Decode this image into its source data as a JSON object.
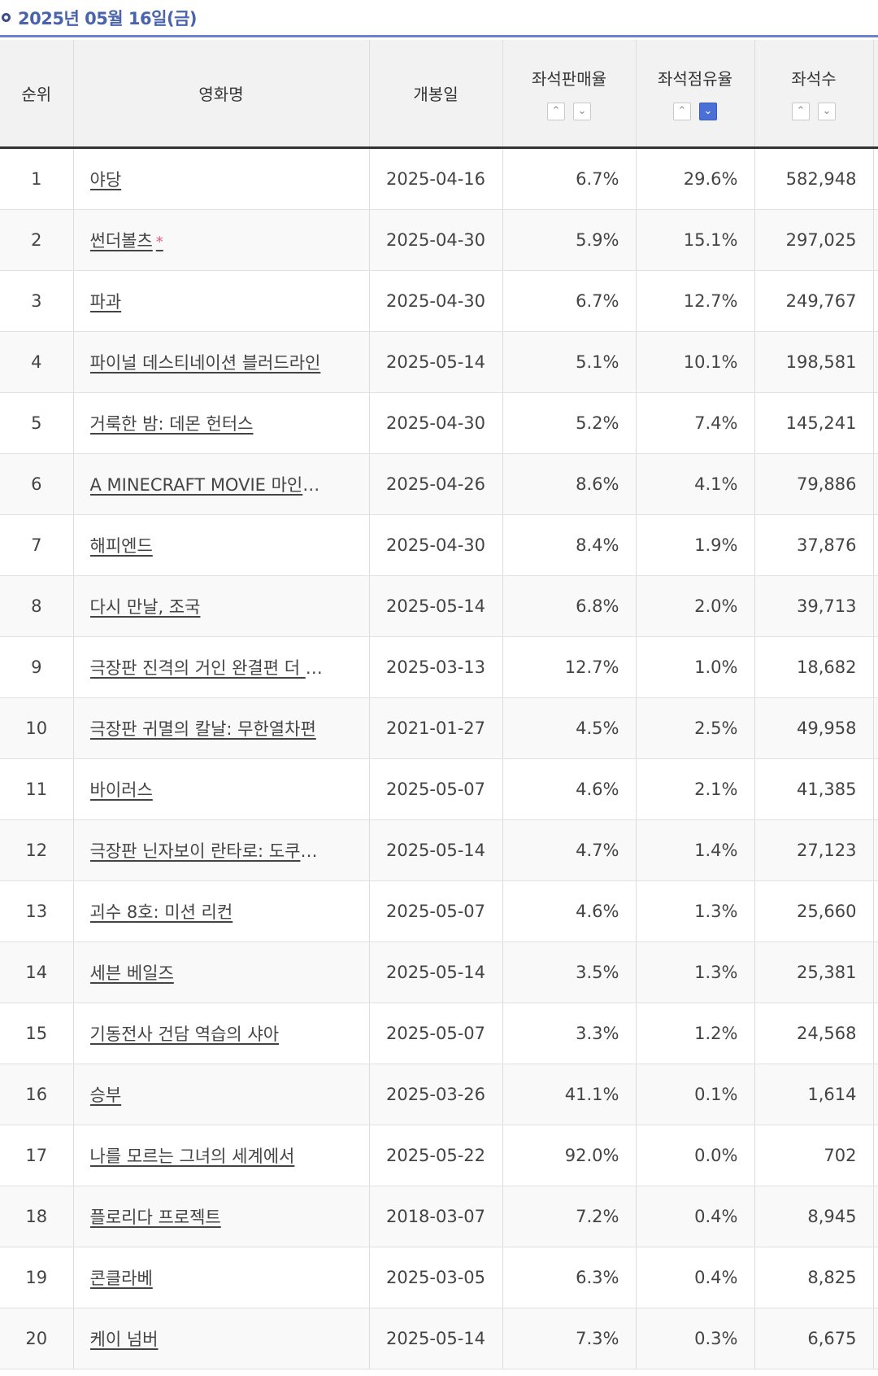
{
  "date_header": "2025년 05월 16일(금)",
  "columns": {
    "rank": "순위",
    "title": "영화명",
    "open_date": "개봉일",
    "seat_sales": "좌석판매율",
    "seat_share": "좌석점유율",
    "seats": "좌석수"
  },
  "sort_icons": {
    "up": "chevron-up-icon",
    "down": "chevron-down-icon"
  },
  "active_sort": "seat_share-desc",
  "colors": {
    "accent": "#4a6fd6",
    "header_text": "#4a63ad",
    "star": "#e25a8c"
  },
  "rows": [
    {
      "rank": "1",
      "title": "야당",
      "open_date": "2025-04-16",
      "seat_sales": "6.7%",
      "seat_share": "29.6%",
      "seats": "582,948",
      "star": ""
    },
    {
      "rank": "2",
      "title": "썬더볼츠",
      "open_date": "2025-04-30",
      "seat_sales": "5.9%",
      "seat_share": "15.1%",
      "seats": "297,025",
      "star": "*"
    },
    {
      "rank": "3",
      "title": "파과",
      "open_date": "2025-04-30",
      "seat_sales": "6.7%",
      "seat_share": "12.7%",
      "seats": "249,767",
      "star": ""
    },
    {
      "rank": "4",
      "title": "파이널 데스티네이션 블러드라인",
      "open_date": "2025-05-14",
      "seat_sales": "5.1%",
      "seat_share": "10.1%",
      "seats": "198,581",
      "star": ""
    },
    {
      "rank": "5",
      "title": "거룩한 밤: 데몬 헌터스",
      "open_date": "2025-04-30",
      "seat_sales": "5.2%",
      "seat_share": "7.4%",
      "seats": "145,241",
      "star": ""
    },
    {
      "rank": "6",
      "title": "A MINECRAFT MOVIE 마인크…",
      "open_date": "2025-04-26",
      "seat_sales": "8.6%",
      "seat_share": "4.1%",
      "seats": "79,886",
      "star": ""
    },
    {
      "rank": "7",
      "title": "해피엔드",
      "open_date": "2025-04-30",
      "seat_sales": "8.4%",
      "seat_share": "1.9%",
      "seats": "37,876",
      "star": ""
    },
    {
      "rank": "8",
      "title": "다시 만날, 조국",
      "open_date": "2025-05-14",
      "seat_sales": "6.8%",
      "seat_share": "2.0%",
      "seats": "39,713",
      "star": ""
    },
    {
      "rank": "9",
      "title": "극장판 진격의 거인 완결편 더 라스…",
      "open_date": "2025-03-13",
      "seat_sales": "12.7%",
      "seat_share": "1.0%",
      "seats": "18,682",
      "star": ""
    },
    {
      "rank": "10",
      "title": "극장판 귀멸의 칼날: 무한열차편",
      "open_date": "2021-01-27",
      "seat_sales": "4.5%",
      "seat_share": "2.5%",
      "seats": "49,958",
      "star": ""
    },
    {
      "rank": "11",
      "title": "바이러스",
      "open_date": "2025-05-07",
      "seat_sales": "4.6%",
      "seat_share": "2.1%",
      "seats": "41,385",
      "star": ""
    },
    {
      "rank": "12",
      "title": "극장판 닌자보이 란타로: 도쿠타케…",
      "open_date": "2025-05-14",
      "seat_sales": "4.7%",
      "seat_share": "1.4%",
      "seats": "27,123",
      "star": ""
    },
    {
      "rank": "13",
      "title": "괴수 8호: 미션 리컨",
      "open_date": "2025-05-07",
      "seat_sales": "4.6%",
      "seat_share": "1.3%",
      "seats": "25,660",
      "star": ""
    },
    {
      "rank": "14",
      "title": "세븐 베일즈",
      "open_date": "2025-05-14",
      "seat_sales": "3.5%",
      "seat_share": "1.3%",
      "seats": "25,381",
      "star": ""
    },
    {
      "rank": "15",
      "title": "기동전사 건담 역습의 샤아",
      "open_date": "2025-05-07",
      "seat_sales": "3.3%",
      "seat_share": "1.2%",
      "seats": "24,568",
      "star": ""
    },
    {
      "rank": "16",
      "title": "승부",
      "open_date": "2025-03-26",
      "seat_sales": "41.1%",
      "seat_share": "0.1%",
      "seats": "1,614",
      "star": ""
    },
    {
      "rank": "17",
      "title": "나를 모르는 그녀의 세계에서",
      "open_date": "2025-05-22",
      "seat_sales": "92.0%",
      "seat_share": "0.0%",
      "seats": "702",
      "star": ""
    },
    {
      "rank": "18",
      "title": "플로리다 프로젝트",
      "open_date": "2018-03-07",
      "seat_sales": "7.2%",
      "seat_share": "0.4%",
      "seats": "8,945",
      "star": ""
    },
    {
      "rank": "19",
      "title": "콘클라베",
      "open_date": "2025-03-05",
      "seat_sales": "6.3%",
      "seat_share": "0.4%",
      "seats": "8,825",
      "star": ""
    },
    {
      "rank": "20",
      "title": "케이 넘버",
      "open_date": "2025-05-14",
      "seat_sales": "7.3%",
      "seat_share": "0.3%",
      "seats": "6,675",
      "star": ""
    }
  ]
}
